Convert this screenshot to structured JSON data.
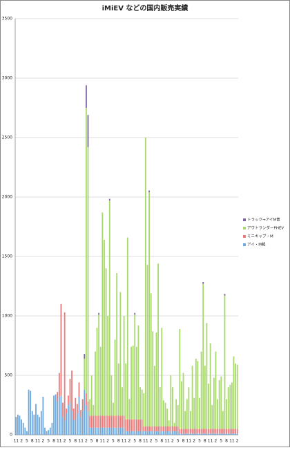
{
  "chart_data": {
    "type": "stacked-bar",
    "title": "iMiEV などの国内販売実績",
    "categories": [
      "11",
      null,
      null,
      "2",
      null,
      null,
      "5",
      null,
      null,
      "8",
      null,
      null,
      "11",
      null,
      null,
      "2",
      null,
      null,
      "5",
      null,
      null,
      "8",
      null,
      null,
      "11",
      null,
      null,
      "2",
      null,
      null,
      "5",
      null,
      null,
      "8",
      null,
      null,
      "11",
      null,
      null,
      "2",
      null,
      null,
      "5",
      null,
      null,
      "8",
      null,
      null,
      "11",
      null,
      null,
      "2",
      null,
      null,
      "5",
      null,
      null,
      "8",
      null,
      null,
      "11",
      null,
      null,
      "2",
      null,
      null,
      "5",
      null,
      null,
      "8",
      null,
      null,
      "11",
      null,
      null,
      "2",
      null,
      null,
      "5",
      null,
      null,
      "8",
      null,
      null,
      "11",
      null,
      null,
      "2",
      null,
      null,
      "5",
      null,
      null,
      "8",
      null,
      null,
      "11",
      null,
      null,
      "2",
      null,
      null,
      "5",
      null,
      null,
      "8",
      null,
      null,
      "11",
      null,
      null,
      "2",
      null,
      null,
      "5",
      null,
      null,
      "8",
      null,
      null,
      "11",
      null,
      null,
      "2"
    ],
    "series": [
      {
        "name": "アイ・M軽",
        "color": "#6fa8dc",
        "values": [
          150,
          170,
          160,
          130,
          100,
          60,
          30,
          380,
          370,
          200,
          170,
          260,
          170,
          150,
          200,
          320,
          60,
          30,
          40,
          60,
          100,
          330,
          340,
          280,
          320,
          330,
          150,
          120,
          180,
          250,
          270,
          200,
          120,
          130,
          180,
          320,
          150,
          200,
          380,
          250,
          200,
          60,
          60,
          60,
          60,
          60,
          60,
          60,
          60,
          60,
          60,
          60,
          60,
          60,
          60,
          60,
          60,
          60,
          60,
          60,
          60,
          30,
          30,
          30,
          30,
          30,
          30,
          30,
          30,
          30,
          30,
          30,
          30,
          30,
          30,
          30,
          30,
          30,
          30,
          30,
          30,
          30,
          30,
          30,
          30,
          30,
          30,
          30,
          30,
          30,
          30,
          10,
          10,
          10,
          10,
          10,
          10,
          10,
          10,
          10,
          10,
          10,
          10,
          10,
          10,
          10,
          10,
          10,
          10,
          10,
          10,
          10,
          10,
          10,
          10,
          10,
          10,
          10,
          10,
          10,
          10,
          10,
          10,
          10
        ]
      },
      {
        "name": "ミニキャブ・M",
        "color": "#ea7a7a",
        "values": [
          0,
          0,
          0,
          0,
          0,
          0,
          0,
          0,
          0,
          0,
          0,
          0,
          0,
          0,
          0,
          0,
          0,
          0,
          0,
          0,
          0,
          0,
          0,
          80,
          200,
          770,
          120,
          910,
          40,
          80,
          200,
          340,
          100,
          180,
          80,
          120,
          60,
          100,
          0,
          100,
          80,
          100,
          100,
          100,
          100,
          100,
          100,
          100,
          100,
          100,
          100,
          100,
          100,
          100,
          100,
          100,
          100,
          100,
          100,
          100,
          100,
          100,
          100,
          100,
          100,
          100,
          100,
          100,
          100,
          100,
          100,
          40,
          40,
          40,
          40,
          40,
          40,
          40,
          40,
          40,
          40,
          40,
          40,
          40,
          40,
          40,
          40,
          40,
          40,
          40,
          40,
          40,
          40,
          40,
          40,
          40,
          40,
          40,
          40,
          40,
          40,
          40,
          40,
          40,
          40,
          40,
          40,
          40,
          40,
          40,
          40,
          40,
          40,
          40,
          40,
          40,
          40,
          40,
          40,
          40,
          40,
          40,
          40,
          40
        ]
      },
      {
        "name": "アウトランダーPHEV",
        "color": "#a9d86e",
        "values": [
          0,
          0,
          0,
          0,
          0,
          0,
          0,
          0,
          0,
          0,
          0,
          0,
          0,
          0,
          0,
          0,
          0,
          0,
          0,
          0,
          0,
          0,
          0,
          0,
          0,
          0,
          0,
          0,
          0,
          0,
          0,
          0,
          0,
          0,
          0,
          0,
          0,
          0,
          260,
          2400,
          2140,
          140,
          340,
          90,
          540,
          740,
          850,
          580,
          1710,
          1480,
          1240,
          840,
          1810,
          340,
          110,
          640,
          1200,
          440,
          1040,
          240,
          840,
          470,
          1530,
          170,
          610,
          620,
          880,
          610,
          790,
          270,
          250,
          280,
          2430,
          1360,
          1970,
          1120,
          800,
          510,
          790,
          1370,
          330,
          830,
          220,
          200,
          150,
          50,
          430,
          330,
          30,
          230,
          180,
          840,
          400,
          470,
          150,
          250,
          350,
          150,
          530,
          260,
          590,
          570,
          260,
          650,
          1220,
          530,
          890,
          380,
          720,
          200,
          430,
          650,
          250,
          410,
          440,
          150,
          1120,
          250,
          350,
          370,
          390,
          610,
          550,
          540
        ]
      },
      {
        "name": "トラック→アイM普",
        "color": "#8064a2",
        "values": [
          0,
          0,
          0,
          0,
          0,
          0,
          0,
          0,
          0,
          0,
          0,
          0,
          0,
          0,
          0,
          0,
          0,
          0,
          0,
          0,
          0,
          0,
          0,
          0,
          0,
          0,
          0,
          0,
          0,
          0,
          0,
          0,
          0,
          0,
          0,
          0,
          0,
          0,
          40,
          190,
          270,
          0,
          0,
          0,
          0,
          0,
          15,
          0,
          0,
          0,
          0,
          0,
          15,
          0,
          0,
          0,
          0,
          0,
          0,
          0,
          0,
          0,
          0,
          0,
          0,
          0,
          15,
          0,
          0,
          0,
          0,
          0,
          0,
          0,
          15,
          0,
          0,
          0,
          0,
          0,
          0,
          0,
          0,
          0,
          0,
          0,
          0,
          0,
          0,
          0,
          0,
          0,
          0,
          0,
          0,
          0,
          0,
          0,
          0,
          0,
          0,
          0,
          0,
          0,
          15,
          0,
          0,
          0,
          0,
          0,
          0,
          0,
          0,
          0,
          0,
          0,
          15,
          0,
          0,
          0,
          0,
          0,
          0,
          0
        ]
      }
    ],
    "ylim": [
      0,
      3500
    ],
    "yticks": [
      0,
      500,
      1000,
      1500,
      2000,
      2500,
      3000,
      3500
    ],
    "grid": true,
    "legend": "right"
  }
}
